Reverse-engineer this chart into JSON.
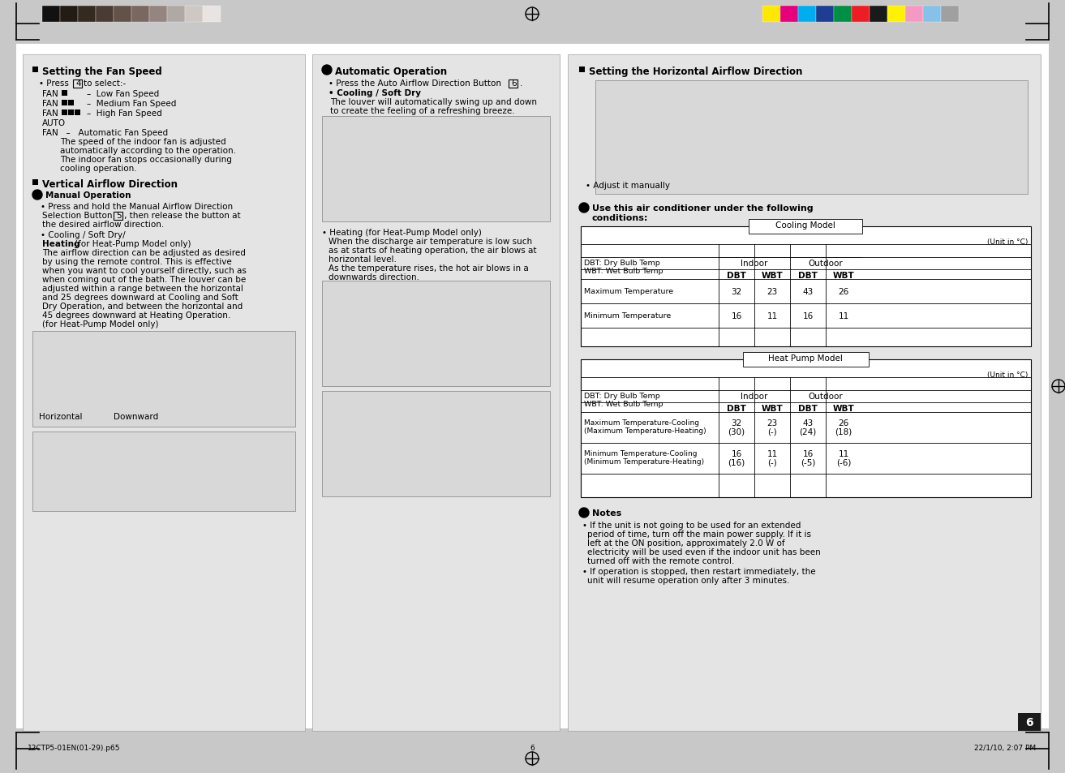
{
  "bg_color": "#c8c8c8",
  "page_bg": "#ffffff",
  "col_bg": "#e4e4e4",
  "header_bar_colors_left": [
    "#111111",
    "#221c14",
    "#342a20",
    "#4a3c34",
    "#625248",
    "#7a6860",
    "#958580",
    "#b0a8a4",
    "#cec8c4",
    "#e8e4e2"
  ],
  "header_bar_colors_right": [
    "#ffe800",
    "#e6007e",
    "#00aeef",
    "#1d3e92",
    "#009045",
    "#ee1c25",
    "#1a1a1a",
    "#fff200",
    "#f49ac2",
    "#85c1e9",
    "#a0a0a0"
  ],
  "page_number": "6",
  "footer_left": "12CTP5-01EN(01-29).p65",
  "footer_center": "6",
  "footer_right": "22/1/10, 2:07 PM"
}
